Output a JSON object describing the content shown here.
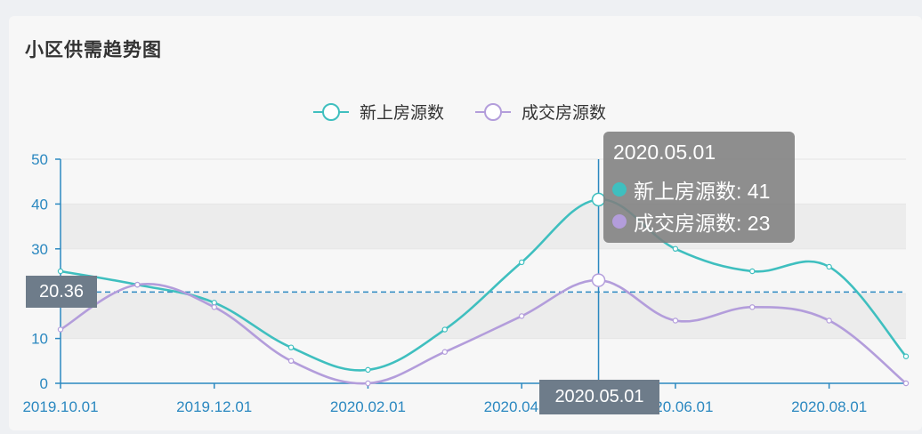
{
  "card": {
    "title": "小区供需趋势图"
  },
  "chart_data": {
    "type": "line",
    "legend_position": "top-center",
    "x_tick_labels": [
      "2019.10.01",
      "2019.12.01",
      "2020.02.01",
      "2020.04.01",
      "2020.06.01",
      "2020.08.01"
    ],
    "x": [
      "2019.10.01",
      "2019.11.01",
      "2019.12.01",
      "2020.01.01",
      "2020.02.01",
      "2020.03.01",
      "2020.04.01",
      "2020.05.01",
      "2020.06.01",
      "2020.07.01",
      "2020.08.01",
      "2020.09.01"
    ],
    "ylim": [
      0,
      50
    ],
    "y_ticks": [
      0,
      10,
      20,
      30,
      40,
      50
    ],
    "series": [
      {
        "name": "新上房源数",
        "color": "#3fbfbf",
        "values": [
          25,
          22,
          18,
          8,
          3,
          12,
          27,
          41,
          30,
          25,
          26,
          6
        ]
      },
      {
        "name": "成交房源数",
        "color": "#b39ddb",
        "values": [
          12,
          22,
          17,
          5,
          0,
          7,
          15,
          23,
          14,
          17,
          14,
          0
        ]
      }
    ],
    "mark_line": {
      "value": 20.36,
      "label": "20.36",
      "color": "#2b88c0"
    },
    "shaded_bands": [
      [
        10,
        20
      ],
      [
        30,
        40
      ]
    ]
  },
  "tooltip": {
    "title": "2020.05.01",
    "rows": [
      {
        "label": "新上房源数: 41",
        "color": "#3fbfbf"
      },
      {
        "label": "成交房源数: 23",
        "color": "#b39ddb"
      }
    ]
  },
  "axis_pointer": {
    "label": "2020.05.01",
    "index": 7
  }
}
